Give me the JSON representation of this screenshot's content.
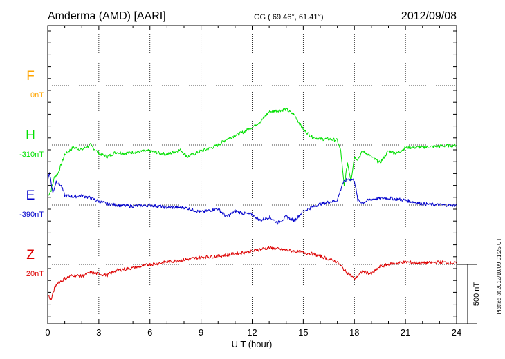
{
  "header": {
    "station": "Amderma (AMD)  [AARI]",
    "coords": "GG ( 69.46°,  61.41°)",
    "date": "2012/09/08"
  },
  "plotted_note": "Plotted at 2012/10/09 01:25 UT",
  "scale_label": "500 nT",
  "chart_data": {
    "type": "line",
    "xlabel": "U T (hour)",
    "xlim": [
      0,
      24
    ],
    "xticks": [
      0,
      3,
      6,
      9,
      12,
      15,
      18,
      21,
      24
    ],
    "colors": {
      "F": "#ffa500",
      "H": "#00e000",
      "E": "#0000cc",
      "Z": "#dd0000"
    },
    "components": [
      {
        "label": "F",
        "baseline_label": "0nT"
      },
      {
        "label": "H",
        "baseline_label": "-310nT"
      },
      {
        "label": "E",
        "baseline_label": "-390nT"
      },
      {
        "label": "Z",
        "baseline_label": "20nT"
      }
    ],
    "series": [
      {
        "name": "H",
        "x": [
          0,
          0.2,
          0.4,
          0.6,
          0.8,
          1,
          1.5,
          2,
          2.5,
          3,
          3.5,
          4,
          4.5,
          5,
          6,
          7,
          7.8,
          8.2,
          9,
          9.5,
          10,
          10.5,
          11,
          11.5,
          12,
          12.5,
          13,
          13.5,
          14,
          14.5,
          15,
          15.5,
          16,
          16.5,
          17,
          17.2,
          17.4,
          17.6,
          17.8,
          18,
          18.2,
          18.5,
          19,
          19.5,
          20,
          20.5,
          21,
          22,
          23,
          24
        ],
        "values": [
          -430,
          -380,
          -270,
          -240,
          -160,
          -80,
          -20,
          -40,
          0,
          -70,
          -100,
          -60,
          -70,
          -60,
          -50,
          -80,
          -40,
          -100,
          -50,
          -30,
          0,
          50,
          80,
          110,
          150,
          200,
          280,
          290,
          300,
          250,
          130,
          70,
          50,
          50,
          40,
          -50,
          -350,
          -150,
          -300,
          -100,
          -120,
          -50,
          -100,
          -150,
          -50,
          -70,
          -20,
          -20,
          -10,
          0
        ]
      },
      {
        "name": "E",
        "x": [
          0,
          0.1,
          0.3,
          0.5,
          0.8,
          1,
          1.5,
          2,
          2.5,
          3,
          3.5,
          4,
          5,
          6,
          7,
          8,
          9,
          10,
          10.5,
          11,
          11.5,
          12,
          12.5,
          13,
          13.5,
          14,
          14.5,
          15,
          15.5,
          16,
          17,
          17.3,
          17.6,
          18,
          18.2,
          18.5,
          19,
          20,
          21,
          22,
          23,
          24
        ],
        "values": [
          200,
          280,
          100,
          200,
          160,
          80,
          70,
          80,
          60,
          30,
          10,
          0,
          -10,
          0,
          -20,
          -20,
          -60,
          -30,
          -100,
          -50,
          -70,
          -80,
          -130,
          -100,
          -150,
          -100,
          -130,
          -50,
          -20,
          10,
          40,
          180,
          220,
          210,
          40,
          20,
          50,
          60,
          40,
          10,
          0,
          0
        ]
      },
      {
        "name": "Z",
        "x": [
          0,
          0.2,
          0.4,
          0.6,
          0.8,
          1,
          1.5,
          2,
          2.5,
          3,
          3.5,
          4,
          5,
          6,
          7,
          8,
          9,
          10,
          11,
          12,
          12.5,
          13,
          13.5,
          14,
          15,
          15.5,
          16,
          17,
          17.5,
          18,
          18.5,
          19,
          19.5,
          20,
          21,
          22,
          23,
          24
        ],
        "values": [
          -250,
          -300,
          -200,
          -150,
          -140,
          -120,
          -90,
          -100,
          -70,
          -80,
          -90,
          -50,
          -30,
          0,
          20,
          40,
          60,
          70,
          90,
          110,
          130,
          140,
          130,
          120,
          100,
          90,
          70,
          20,
          -60,
          -120,
          -60,
          -80,
          -20,
          0,
          20,
          10,
          20,
          10
        ]
      }
    ]
  }
}
